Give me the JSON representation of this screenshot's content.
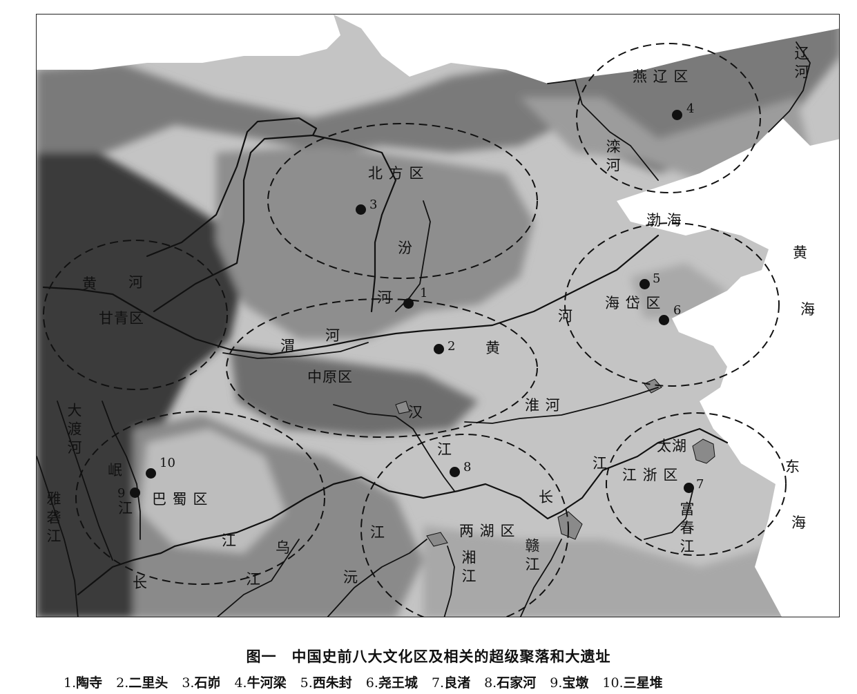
{
  "caption": "图一　中国史前八大文化区及相关的超级聚落和大遗址",
  "regions": {
    "north": "北 方 区",
    "ganqing": "甘青区",
    "zhongyuan": "中原区",
    "yanliao": "燕 辽 区",
    "haidai": "海 岱 区",
    "bashu": "巴 蜀 区",
    "lianghu": "两 湖 区",
    "jiangzhe": "江 浙 区"
  },
  "seas": {
    "bohai": "渤 海",
    "huanghai_1": "黄",
    "huanghai_2": "海",
    "donghai_1": "东",
    "donghai_2": "海"
  },
  "rivers": {
    "liaohe": "辽河",
    "luanhe": "滦河",
    "fenhe": "汾",
    "fenhe_2": "河",
    "weihe_1": "渭",
    "weihe_2": "河",
    "huanghe_w1": "黄",
    "huanghe_w2": "河",
    "huanghe_m": "黄",
    "huanghe_e": "河",
    "huaihe": "淮 河",
    "hanjiang_1": "汉",
    "hanjiang_2": "江",
    "dadu": "大渡河",
    "minjiang": "岷",
    "minjiang_2": "江",
    "yalong": "雅砻江",
    "changjiang_w1": "江",
    "changjiang_w2": "长",
    "wujiang_1": "乌",
    "wujiang_2": "江",
    "yuanjiang_1": "沅",
    "yuanjiang_2": "江",
    "xiangjiang": "湘江",
    "ganjiang": "赣江",
    "changjiang_e1": "长",
    "changjiang_e2": "江",
    "fuchun": "富春江",
    "taihu": "太湖"
  },
  "sites": [
    {
      "num": "1",
      "name": "陶寺"
    },
    {
      "num": "2",
      "name": "二里头"
    },
    {
      "num": "3",
      "name": "石峁"
    },
    {
      "num": "4",
      "name": "牛河梁"
    },
    {
      "num": "5",
      "name": "西朱封"
    },
    {
      "num": "6",
      "name": "尧王城"
    },
    {
      "num": "7",
      "name": "良渚"
    },
    {
      "num": "8",
      "name": "石家河"
    },
    {
      "num": "9",
      "name": "宝墩"
    },
    {
      "num": "10",
      "name": "三星堆"
    }
  ],
  "legend_items": [
    {
      "num": "1.",
      "name": "陶寺"
    },
    {
      "num": "2.",
      "name": "二里头"
    },
    {
      "num": "3.",
      "name": "石峁"
    },
    {
      "num": "4.",
      "name": "牛河梁"
    },
    {
      "num": "5.",
      "name": "西朱封"
    },
    {
      "num": "6.",
      "name": "尧王城"
    },
    {
      "num": "7.",
      "name": "良渚"
    },
    {
      "num": "8.",
      "name": "石家河"
    },
    {
      "num": "9.",
      "name": "宝墩"
    },
    {
      "num": "10.",
      "name": "三星堆"
    }
  ],
  "colors": {
    "sea": "#ffffff",
    "lowland": "#c8c8c8",
    "upland": "#9a9a9a",
    "mountain": "#6a6a6a",
    "high_plateau": "#3c3c3c",
    "lake": "#888888",
    "river": "#111111",
    "region_boundary": "#111111"
  }
}
